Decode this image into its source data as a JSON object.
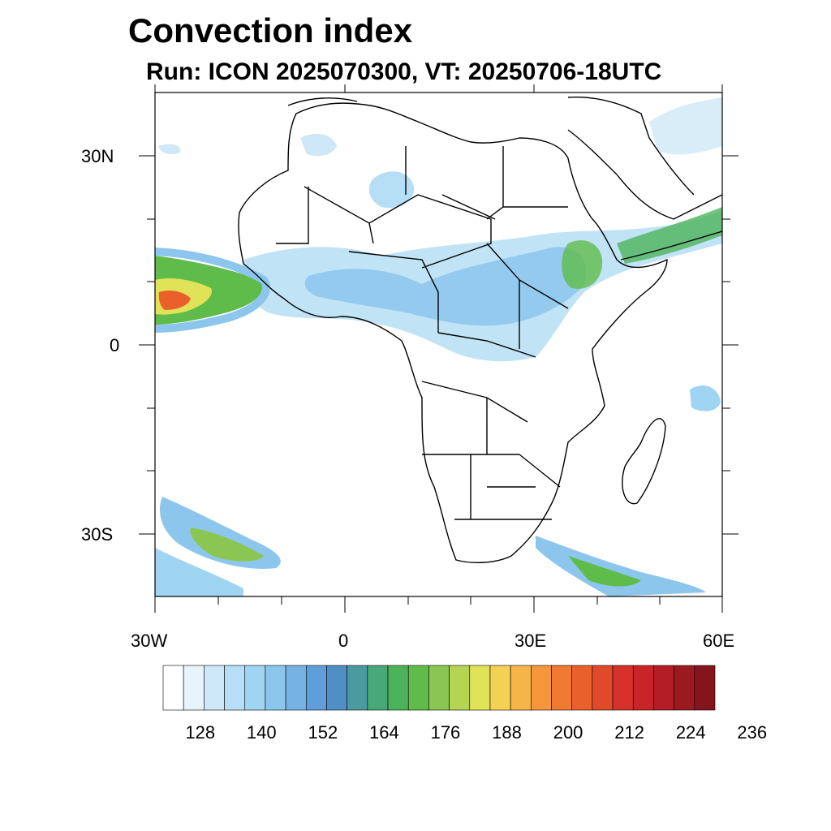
{
  "title": "Convection index",
  "subtitle": "Run: ICON 2025070300,  VT: 20250706-18UTC",
  "axes": {
    "lat_labels": [
      {
        "text": "30N",
        "lat": 30
      },
      {
        "text": "0",
        "lat": 0
      },
      {
        "text": "30S",
        "lat": -30
      }
    ],
    "lon_labels": [
      {
        "text": "30W",
        "lon": -30
      },
      {
        "text": "0",
        "lon": 0
      },
      {
        "text": "30E",
        "lon": 30
      },
      {
        "text": "60E",
        "lon": 60
      }
    ],
    "lon_range": [
      -30,
      60
    ],
    "lat_range": [
      -40,
      40
    ]
  },
  "colorbar": {
    "labels": [
      "128",
      "140",
      "152",
      "164",
      "176",
      "188",
      "200",
      "212",
      "224",
      "236"
    ],
    "colors": [
      "#ffffff",
      "#e8f4fb",
      "#cfe8f7",
      "#b6def5",
      "#9fd4f3",
      "#8cc6ec",
      "#76b3e4",
      "#5f9ed8",
      "#4f8fc6",
      "#4a9aa0",
      "#48a877",
      "#4db35b",
      "#5fbb4a",
      "#8cc652",
      "#b6d453",
      "#e0e257",
      "#f3d155",
      "#f6b549",
      "#f5963b",
      "#f07a31",
      "#e9602b",
      "#e04a2b",
      "#d63229",
      "#c8242a",
      "#b41c26",
      "#9d1921",
      "#85151c"
    ]
  }
}
